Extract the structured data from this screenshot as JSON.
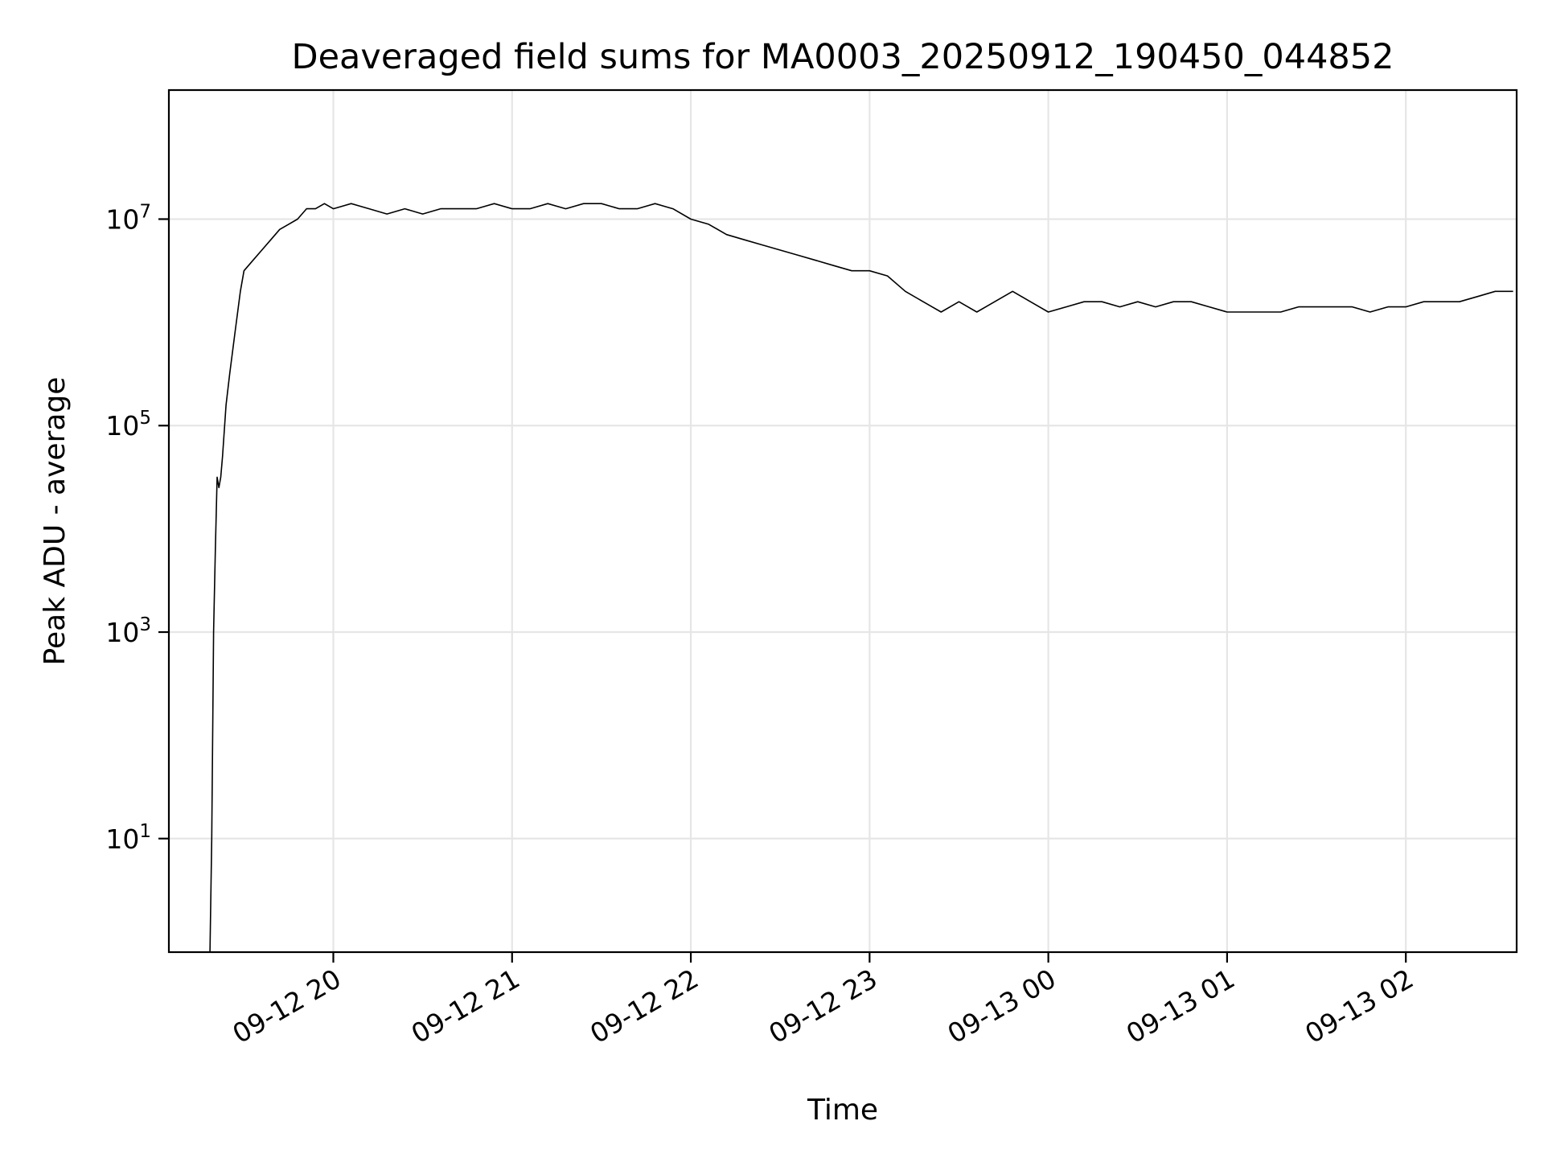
{
  "chart_data": {
    "type": "line",
    "title": "Deaveraged field sums for MA0003_20250912_190450_044852",
    "xlabel": "Time",
    "ylabel": "Peak ADU - average",
    "yscale": "log",
    "ylim_log10": [
      -0.1,
      8.25
    ],
    "xlim_hours": [
      19.08,
      26.62
    ],
    "grid": true,
    "line_color": "#000000",
    "x_ticks": [
      {
        "label": "09-12 20",
        "hour": 20
      },
      {
        "label": "09-12 21",
        "hour": 21
      },
      {
        "label": "09-12 22",
        "hour": 22
      },
      {
        "label": "09-12 23",
        "hour": 23
      },
      {
        "label": "09-13 00",
        "hour": 24
      },
      {
        "label": "09-13 01",
        "hour": 25
      },
      {
        "label": "09-13 02",
        "hour": 26
      }
    ],
    "y_ticks": [
      {
        "base": "10",
        "exp": "1",
        "log10": 1
      },
      {
        "base": "10",
        "exp": "3",
        "log10": 3
      },
      {
        "base": "10",
        "exp": "5",
        "log10": 5
      },
      {
        "base": "10",
        "exp": "7",
        "log10": 7
      }
    ],
    "series": [
      {
        "name": "field sums",
        "x_hours": [
          19.31,
          19.32,
          19.33,
          19.34,
          19.35,
          19.36,
          19.37,
          19.38,
          19.4,
          19.42,
          19.45,
          19.48,
          19.5,
          19.55,
          19.6,
          19.65,
          19.7,
          19.75,
          19.8,
          19.85,
          19.9,
          19.95,
          20.0,
          20.1,
          20.2,
          20.3,
          20.4,
          20.5,
          20.6,
          20.7,
          20.8,
          20.9,
          21.0,
          21.1,
          21.2,
          21.3,
          21.4,
          21.5,
          21.6,
          21.7,
          21.8,
          21.9,
          22.0,
          22.1,
          22.2,
          22.3,
          22.4,
          22.5,
          22.6,
          22.7,
          22.8,
          22.9,
          23.0,
          23.1,
          23.2,
          23.3,
          23.4,
          23.5,
          23.6,
          23.7,
          23.8,
          23.9,
          24.0,
          24.1,
          24.2,
          24.3,
          24.4,
          24.5,
          24.6,
          24.7,
          24.8,
          24.9,
          25.0,
          25.1,
          25.2,
          25.3,
          25.4,
          25.5,
          25.6,
          25.7,
          25.8,
          25.9,
          26.0,
          26.1,
          26.2,
          26.3,
          26.4,
          26.5,
          26.6
        ],
        "y_log10": [
          -0.1,
          1.0,
          3.0,
          3.8,
          4.5,
          4.4,
          4.5,
          4.7,
          5.2,
          5.5,
          5.9,
          6.3,
          6.5,
          6.6,
          6.7,
          6.8,
          6.9,
          6.95,
          7.0,
          7.1,
          7.1,
          7.15,
          7.1,
          7.15,
          7.1,
          7.05,
          7.1,
          7.05,
          7.1,
          7.1,
          7.1,
          7.15,
          7.1,
          7.1,
          7.15,
          7.1,
          7.15,
          7.15,
          7.1,
          7.1,
          7.15,
          7.1,
          7.0,
          6.95,
          6.85,
          6.8,
          6.75,
          6.7,
          6.65,
          6.6,
          6.55,
          6.5,
          6.5,
          6.45,
          6.3,
          6.2,
          6.1,
          6.2,
          6.1,
          6.2,
          6.3,
          6.2,
          6.1,
          6.15,
          6.2,
          6.2,
          6.15,
          6.2,
          6.15,
          6.2,
          6.2,
          6.15,
          6.1,
          6.1,
          6.1,
          6.1,
          6.15,
          6.15,
          6.15,
          6.15,
          6.1,
          6.15,
          6.15,
          6.2,
          6.2,
          6.2,
          6.25,
          6.3,
          6.3
        ]
      }
    ]
  }
}
